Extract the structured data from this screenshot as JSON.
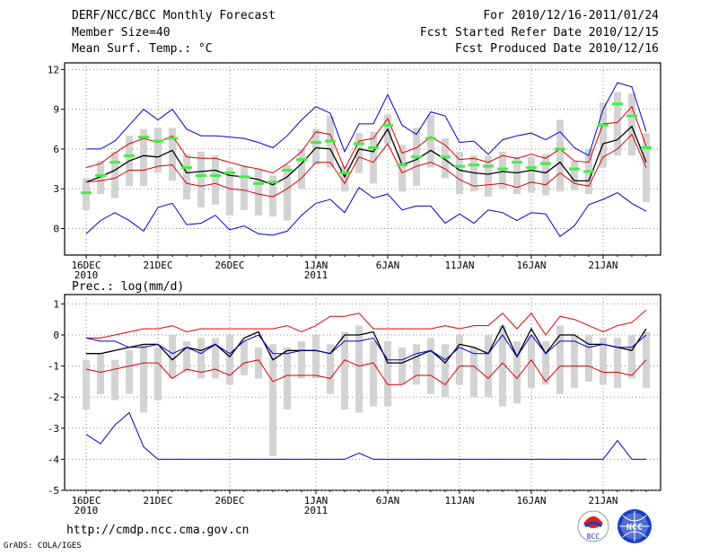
{
  "header": {
    "title": "DERF/NCC/BCC Monthly Forecast",
    "member": "Member Size=40",
    "variable": "Mean Surf. Temp.: °C",
    "period": "For 2010/12/16-2011/01/24",
    "started": "Fcst Started Refer Date 2010/12/15",
    "produced": "Fcst Produced Date 2010/12/16"
  },
  "footer": {
    "url": "http://cmdp.ncc.cma.gov.cn",
    "credit": "GrADS: COLA/IGES",
    "logo1": "BCC",
    "logo2": "NCC"
  },
  "colors": {
    "envelope": "#0000cc",
    "spread": "#dd0000",
    "mean": "#000000",
    "box": "#d3d3d3",
    "median": "#44ee44"
  },
  "chart_data": [
    {
      "type": "line",
      "title": "",
      "ylabel": "",
      "ylim": [
        -2,
        12.5
      ],
      "yticks": [
        0,
        3,
        6,
        9,
        12
      ],
      "x": [
        1,
        2,
        3,
        4,
        5,
        6,
        7,
        8,
        9,
        10,
        11,
        12,
        13,
        14,
        15,
        16,
        17,
        18,
        19,
        20,
        21,
        22,
        23,
        24,
        25,
        26,
        27,
        28,
        29,
        30,
        31,
        32,
        33,
        34,
        35,
        36,
        37,
        38,
        39,
        40
      ],
      "xtick_positions": [
        1,
        6,
        11,
        17,
        22,
        27,
        32,
        37
      ],
      "xtick_labels": [
        "16DEC",
        "21DEC",
        "26DEC",
        "1JAN",
        "6JAN",
        "11JAN",
        "16JAN",
        "21JAN"
      ],
      "xtick_sublabels": [
        "2010",
        "",
        "",
        "2011",
        "",
        "",
        "",
        ""
      ],
      "series": [
        {
          "name": "max",
          "values": [
            6.0,
            6.0,
            6.6,
            7.8,
            9.0,
            8.2,
            9.0,
            7.5,
            7.0,
            7.0,
            6.9,
            6.8,
            6.5,
            6.1,
            7.0,
            8.2,
            9.2,
            8.7,
            5.8,
            7.9,
            7.9,
            10.1,
            7.8,
            7.1,
            8.8,
            8.5,
            6.5,
            6.6,
            5.6,
            6.7,
            7.0,
            7.2,
            6.7,
            7.3,
            6.1,
            5.5,
            9.0,
            11.0,
            10.7,
            7.3
          ]
        },
        {
          "name": "spread_upper",
          "values": [
            4.6,
            4.9,
            5.7,
            6.4,
            6.8,
            6.5,
            7.0,
            5.4,
            5.3,
            5.3,
            5.0,
            4.7,
            4.5,
            4.2,
            4.9,
            5.8,
            7.3,
            7.1,
            4.5,
            6.6,
            6.8,
            8.3,
            5.7,
            6.1,
            6.9,
            6.3,
            5.2,
            5.3,
            5.0,
            5.5,
            5.3,
            5.6,
            5.3,
            6.0,
            5.1,
            5.0,
            7.9,
            8.0,
            9.2,
            6.2
          ]
        },
        {
          "name": "mean",
          "values": [
            3.5,
            3.9,
            4.4,
            5.1,
            5.5,
            5.4,
            5.9,
            4.2,
            4.3,
            4.4,
            4.0,
            3.9,
            3.7,
            3.3,
            3.9,
            4.9,
            6.1,
            6.0,
            3.9,
            6.0,
            5.8,
            7.5,
            4.8,
            5.2,
            5.9,
            5.2,
            4.4,
            4.2,
            4.1,
            4.3,
            4.2,
            4.4,
            4.2,
            5.0,
            3.6,
            3.6,
            6.4,
            6.7,
            7.7,
            5.0
          ]
        },
        {
          "name": "spread_lower",
          "values": [
            3.5,
            3.6,
            3.8,
            4.4,
            4.4,
            4.7,
            4.8,
            3.4,
            3.2,
            3.4,
            3.0,
            2.9,
            2.6,
            2.4,
            3.0,
            3.8,
            5.0,
            5.0,
            3.4,
            5.4,
            5.0,
            6.4,
            4.2,
            4.7,
            5.0,
            4.5,
            3.7,
            3.2,
            3.3,
            3.4,
            3.1,
            3.5,
            3.3,
            4.2,
            3.4,
            3.2,
            5.4,
            6.0,
            7.1,
            4.6
          ]
        },
        {
          "name": "min",
          "values": [
            -0.4,
            0.6,
            1.2,
            0.6,
            -0.2,
            1.6,
            1.9,
            0.3,
            0.4,
            1.0,
            -0.1,
            0.2,
            -0.4,
            -0.5,
            -0.2,
            1.0,
            1.9,
            2.2,
            1.2,
            3.1,
            2.3,
            2.6,
            1.4,
            1.7,
            1.7,
            0.4,
            1.1,
            0.4,
            1.4,
            1.2,
            0.6,
            1.2,
            1.1,
            -0.6,
            0.2,
            1.8,
            2.2,
            2.7,
            1.9,
            1.3
          ]
        }
      ],
      "box_low": [
        1.4,
        2.6,
        2.3,
        3.2,
        3.2,
        4.2,
        3.6,
        2.2,
        1.6,
        1.8,
        1.0,
        1.4,
        1.0,
        0.9,
        0.6,
        3.0,
        4.8,
        4.6,
        2.8,
        4.2,
        3.4,
        6.4,
        2.8,
        3.2,
        4.6,
        3.8,
        2.6,
        2.8,
        2.4,
        3.0,
        2.6,
        2.7,
        2.5,
        2.8,
        2.9,
        2.6,
        4.6,
        5.5,
        5.5,
        2.0
      ],
      "box_high": [
        3.8,
        5.1,
        5.8,
        7.0,
        7.5,
        7.6,
        7.6,
        5.6,
        5.8,
        5.5,
        4.6,
        4.7,
        4.5,
        4.0,
        4.8,
        6.0,
        7.5,
        8.5,
        4.7,
        7.2,
        7.3,
        8.6,
        6.3,
        7.6,
        8.6,
        6.8,
        5.8,
        5.5,
        5.5,
        5.8,
        5.4,
        5.4,
        5.6,
        8.2,
        5.1,
        6.0,
        9.5,
        10.3,
        10.2,
        7.2
      ],
      "median": [
        2.7,
        4.0,
        5.0,
        5.5,
        6.9,
        6.6,
        6.8,
        4.6,
        4.0,
        4.0,
        4.2,
        3.9,
        3.4,
        3.5,
        4.4,
        5.2,
        6.5,
        6.6,
        4.2,
        6.4,
        6.1,
        7.8,
        4.8,
        5.4,
        6.8,
        5.4,
        4.7,
        4.8,
        4.7,
        4.5,
        5.0,
        4.6,
        4.9,
        6.0,
        4.5,
        4.3,
        7.8,
        9.4,
        8.5,
        6.1
      ]
    },
    {
      "type": "line",
      "title": "Prec.: log(mm/d)",
      "ylabel": "",
      "ylim": [
        -5,
        1.3
      ],
      "yticks": [
        -5,
        -4,
        -3,
        -2,
        -1,
        0,
        1
      ],
      "x": [
        1,
        2,
        3,
        4,
        5,
        6,
        7,
        8,
        9,
        10,
        11,
        12,
        13,
        14,
        15,
        16,
        17,
        18,
        19,
        20,
        21,
        22,
        23,
        24,
        25,
        26,
        27,
        28,
        29,
        30,
        31,
        32,
        33,
        34,
        35,
        36,
        37,
        38,
        39,
        40
      ],
      "xtick_positions": [
        1,
        6,
        11,
        17,
        22,
        27,
        32,
        37
      ],
      "xtick_labels": [
        "16DEC",
        "21DEC",
        "26DEC",
        "1JAN",
        "6JAN",
        "11JAN",
        "16JAN",
        "21JAN"
      ],
      "xtick_sublabels": [
        "2010",
        "",
        "",
        "2011",
        "",
        "",
        "",
        ""
      ],
      "series": [
        {
          "name": "max",
          "values": [
            -3.2,
            -3.5,
            -2.9,
            -2.5,
            -3.6,
            -4.0,
            -4.0,
            -4.0,
            -4.0,
            -4.0,
            -4.0,
            -4.0,
            -4.0,
            -4.0,
            -4.0,
            -4.0,
            -4.0,
            -4.0,
            -4.0,
            -3.8,
            -4.0,
            -4.0,
            -4.0,
            -4.0,
            -4.0,
            -4.0,
            -4.0,
            -4.0,
            -4.0,
            -4.0,
            -4.0,
            -4.0,
            -4.0,
            -4.0,
            -4.0,
            -4.0,
            -4.0,
            -3.4,
            -4.0,
            -4.0
          ]
        },
        {
          "name": "spread_upper",
          "values": [
            -0.1,
            -0.1,
            0.0,
            0.1,
            0.2,
            0.2,
            0.3,
            0.1,
            0.2,
            0.2,
            0.2,
            0.2,
            0.2,
            0.2,
            0.3,
            0.1,
            0.3,
            0.6,
            0.6,
            0.7,
            0.2,
            0.2,
            0.2,
            0.2,
            0.2,
            0.3,
            0.2,
            0.3,
            0.3,
            0.7,
            0.2,
            0.7,
            0.0,
            0.6,
            0.5,
            0.3,
            0.1,
            0.3,
            0.4,
            0.8
          ]
        },
        {
          "name": "mean",
          "values": [
            -0.6,
            -0.6,
            -0.5,
            -0.4,
            -0.3,
            -0.3,
            -0.8,
            -0.4,
            -0.5,
            -0.3,
            -0.7,
            -0.1,
            0.1,
            -0.8,
            -0.5,
            -0.5,
            -0.5,
            -0.6,
            0.0,
            0.0,
            0.1,
            -0.9,
            -0.9,
            -0.7,
            -0.5,
            -0.9,
            -0.3,
            -0.4,
            -0.6,
            0.3,
            -0.7,
            0.2,
            -0.6,
            0.0,
            0.0,
            -0.3,
            -0.3,
            -0.4,
            -0.5,
            0.2
          ]
        },
        {
          "name": "spread_lower",
          "values": [
            -1.1,
            -1.2,
            -1.1,
            -1.0,
            -0.9,
            -0.9,
            -1.4,
            -1.1,
            -1.2,
            -1.1,
            -1.3,
            -0.9,
            -0.8,
            -1.5,
            -1.3,
            -1.3,
            -1.3,
            -1.4,
            -0.8,
            -1.0,
            -0.9,
            -1.6,
            -1.6,
            -1.3,
            -1.3,
            -1.6,
            -1.0,
            -1.0,
            -1.4,
            -0.9,
            -1.4,
            -0.8,
            -1.5,
            -1.0,
            -1.0,
            -1.0,
            -1.2,
            -1.2,
            -1.3,
            -0.8
          ]
        },
        {
          "name": "min",
          "values": [
            -0.1,
            -0.2,
            -0.2,
            -0.4,
            -0.4,
            -0.3,
            -0.6,
            -0.4,
            -0.6,
            -0.3,
            -0.6,
            -0.2,
            0.0,
            -0.6,
            -0.6,
            -0.5,
            -0.5,
            -0.6,
            -0.2,
            -0.2,
            -0.1,
            -0.8,
            -0.8,
            -0.6,
            -0.5,
            -0.8,
            -0.4,
            -0.6,
            -0.6,
            0.0,
            -0.7,
            0.0,
            -0.6,
            -0.2,
            -0.2,
            -0.4,
            -0.3,
            -0.4,
            -0.4,
            0.0
          ]
        }
      ],
      "box_low": [
        -2.4,
        -1.9,
        -2.1,
        -1.9,
        -2.5,
        -2.1,
        -1.4,
        -1.2,
        -1.4,
        -1.4,
        -1.6,
        -1.3,
        -1.4,
        -3.9,
        -2.4,
        -1.4,
        -1.4,
        -1.9,
        -2.4,
        -2.5,
        -2.3,
        -2.3,
        -1.6,
        -1.6,
        -1.9,
        -2.0,
        -1.6,
        -2.0,
        -2.0,
        -2.3,
        -2.2,
        -1.7,
        -1.6,
        -1.9,
        -1.7,
        -1.5,
        -1.6,
        -1.7,
        -1.4,
        -1.7
      ],
      "box_high": [
        -0.8,
        -0.6,
        -0.8,
        -0.5,
        -0.3,
        -0.4,
        0.0,
        -0.2,
        -0.1,
        -0.1,
        0.0,
        -0.2,
        -0.4,
        -0.3,
        -0.4,
        -0.2,
        0.0,
        -0.3,
        0.1,
        0.3,
        -0.2,
        -0.2,
        -0.4,
        -0.3,
        -0.1,
        -0.3,
        0.0,
        -0.4,
        0.0,
        0.3,
        -0.2,
        0.0,
        -0.2,
        0.3,
        0.0,
        0.0,
        -0.1,
        -0.1,
        0.0,
        0.1
      ]
    }
  ]
}
